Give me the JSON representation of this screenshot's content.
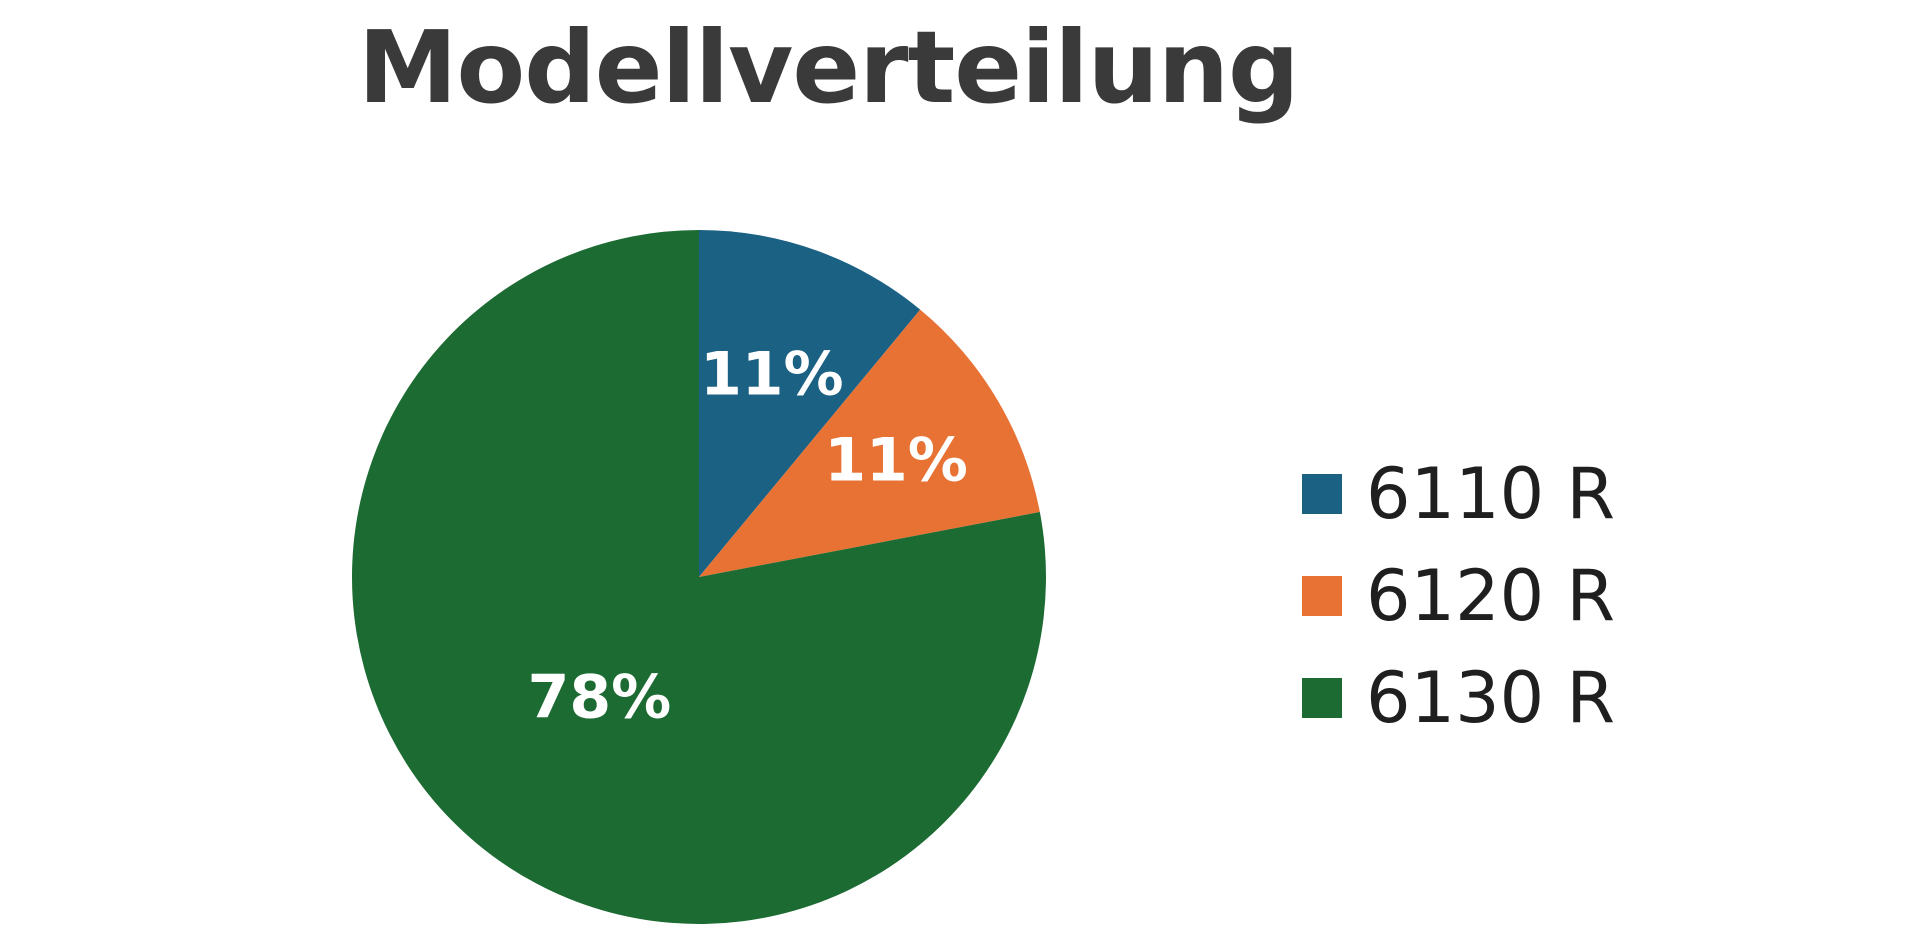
{
  "chart_data": {
    "type": "pie",
    "title": "Modellverteilung",
    "categories": [
      "6110 R",
      "6120 R",
      "6130 R"
    ],
    "values": [
      11,
      11,
      78
    ],
    "value_labels": [
      "11%",
      "11%",
      "78%"
    ],
    "unit": "%",
    "colors": [
      "#1a6184",
      "#e87234",
      "#1c6b32"
    ],
    "start_angle": "12 o'clock",
    "direction": "clockwise",
    "legend_position": "right"
  }
}
